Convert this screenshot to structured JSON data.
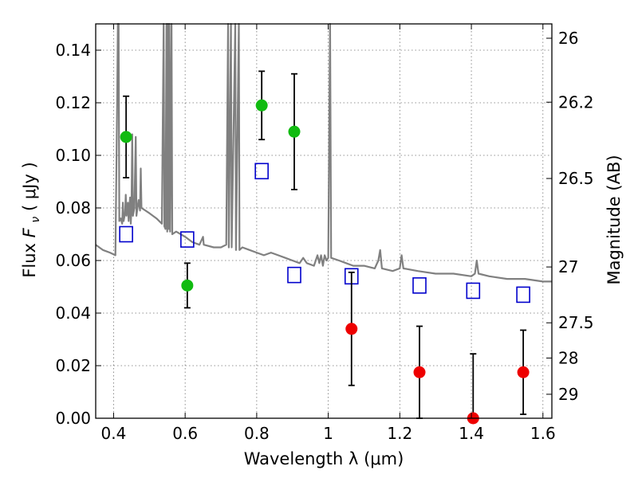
{
  "chart_data": {
    "type": "scatter",
    "xlabel": "Wavelength  λ (μm)",
    "ylabel_left": {
      "prefix": "Flux ",
      "symbol": "F",
      "subscript": "ν",
      "suffix": " ( μJy )"
    },
    "ylabel_right": "Magnitude (AB)",
    "xlim": [
      0.35,
      1.625
    ],
    "ylim": [
      0,
      0.15
    ],
    "x_ticks": [
      0.4,
      0.6,
      0.8,
      1.0,
      1.2,
      1.4,
      1.6
    ],
    "x_tick_labels": [
      "0.4",
      "0.6",
      "0.8",
      "1",
      "1.2",
      "1.4",
      "1.6"
    ],
    "y_ticks": [
      0.0,
      0.02,
      0.04,
      0.06,
      0.08,
      0.1,
      0.12,
      0.14
    ],
    "y_tick_labels": [
      "0.00",
      "0.02",
      "0.04",
      "0.06",
      "0.08",
      "0.10",
      "0.12",
      "0.14"
    ],
    "right_ticks": [
      {
        "mag": 26,
        "label": "26"
      },
      {
        "mag": 26.2,
        "label": "26.2"
      },
      {
        "mag": 26.5,
        "label": "26.5"
      },
      {
        "mag": 27,
        "label": "27"
      },
      {
        "mag": 27.5,
        "label": "27.5"
      },
      {
        "mag": 28,
        "label": "28"
      },
      {
        "mag": 29,
        "label": "29"
      }
    ],
    "grid": true,
    "colors": {
      "detected": "#11bb11",
      "upper": "#ee0000",
      "model": "#0000cc",
      "spectrum": "#808080",
      "errorbar": "#000000"
    },
    "detected_points": [
      {
        "x": 0.435,
        "y": 0.107,
        "err": 0.0155
      },
      {
        "x": 0.606,
        "y": 0.0505,
        "err": 0.0085
      },
      {
        "x": 0.814,
        "y": 0.119,
        "err": 0.013
      },
      {
        "x": 0.905,
        "y": 0.109,
        "err": 0.022
      }
    ],
    "nondetected_points": [
      {
        "x": 1.065,
        "y": 0.034,
        "err": 0.0215
      },
      {
        "x": 1.255,
        "y": 0.0175,
        "err": 0.0175
      },
      {
        "x": 1.405,
        "y": 0.0,
        "err": 0.0245
      },
      {
        "x": 1.545,
        "y": 0.0175,
        "err": 0.016
      }
    ],
    "model_points": [
      {
        "x": 0.435,
        "y": 0.07
      },
      {
        "x": 0.606,
        "y": 0.068
      },
      {
        "x": 0.814,
        "y": 0.094
      },
      {
        "x": 0.905,
        "y": 0.0545
      },
      {
        "x": 1.065,
        "y": 0.054
      },
      {
        "x": 1.255,
        "y": 0.0505
      },
      {
        "x": 1.405,
        "y": 0.0485
      },
      {
        "x": 1.545,
        "y": 0.047
      }
    ],
    "spectrum": [
      [
        0.35,
        0.066
      ],
      [
        0.37,
        0.064
      ],
      [
        0.39,
        0.063
      ],
      [
        0.405,
        0.062
      ],
      [
        0.41,
        0.12
      ],
      [
        0.412,
        0.15
      ],
      [
        0.414,
        0.15
      ],
      [
        0.416,
        0.075
      ],
      [
        0.42,
        0.076
      ],
      [
        0.424,
        0.074
      ],
      [
        0.426,
        0.082
      ],
      [
        0.428,
        0.075
      ],
      [
        0.432,
        0.078
      ],
      [
        0.434,
        0.085
      ],
      [
        0.436,
        0.077
      ],
      [
        0.44,
        0.082
      ],
      [
        0.442,
        0.075
      ],
      [
        0.446,
        0.084
      ],
      [
        0.448,
        0.074
      ],
      [
        0.45,
        0.08
      ],
      [
        0.452,
        0.108
      ],
      [
        0.454,
        0.077
      ],
      [
        0.458,
        0.08
      ],
      [
        0.462,
        0.107
      ],
      [
        0.464,
        0.077
      ],
      [
        0.47,
        0.083
      ],
      [
        0.474,
        0.079
      ],
      [
        0.476,
        0.095
      ],
      [
        0.478,
        0.08
      ],
      [
        0.5,
        0.078
      ],
      [
        0.52,
        0.076
      ],
      [
        0.535,
        0.074
      ],
      [
        0.54,
        0.15
      ],
      [
        0.542,
        0.073
      ],
      [
        0.545,
        0.072
      ],
      [
        0.548,
        0.15
      ],
      [
        0.55,
        0.071
      ],
      [
        0.552,
        0.15
      ],
      [
        0.554,
        0.072
      ],
      [
        0.556,
        0.15
      ],
      [
        0.558,
        0.071
      ],
      [
        0.562,
        0.15
      ],
      [
        0.564,
        0.07
      ],
      [
        0.575,
        0.071
      ],
      [
        0.6,
        0.069
      ],
      [
        0.62,
        0.067
      ],
      [
        0.64,
        0.066
      ],
      [
        0.65,
        0.069
      ],
      [
        0.652,
        0.066
      ],
      [
        0.68,
        0.065
      ],
      [
        0.7,
        0.065
      ],
      [
        0.715,
        0.066
      ],
      [
        0.72,
        0.15
      ],
      [
        0.722,
        0.065
      ],
      [
        0.728,
        0.15
      ],
      [
        0.73,
        0.065
      ],
      [
        0.74,
        0.15
      ],
      [
        0.742,
        0.064
      ],
      [
        0.75,
        0.15
      ],
      [
        0.752,
        0.064
      ],
      [
        0.76,
        0.065
      ],
      [
        0.78,
        0.064
      ],
      [
        0.8,
        0.063
      ],
      [
        0.82,
        0.062
      ],
      [
        0.84,
        0.063
      ],
      [
        0.86,
        0.062
      ],
      [
        0.88,
        0.061
      ],
      [
        0.9,
        0.06
      ],
      [
        0.92,
        0.059
      ],
      [
        0.93,
        0.061
      ],
      [
        0.94,
        0.059
      ],
      [
        0.96,
        0.058
      ],
      [
        0.97,
        0.062
      ],
      [
        0.975,
        0.059
      ],
      [
        0.98,
        0.062
      ],
      [
        0.985,
        0.058
      ],
      [
        0.99,
        0.062
      ],
      [
        0.995,
        0.06
      ],
      [
        1.0,
        0.061
      ],
      [
        1.005,
        0.15
      ],
      [
        1.008,
        0.061
      ],
      [
        1.03,
        0.06
      ],
      [
        1.05,
        0.059
      ],
      [
        1.07,
        0.058
      ],
      [
        1.1,
        0.058
      ],
      [
        1.13,
        0.057
      ],
      [
        1.14,
        0.06
      ],
      [
        1.145,
        0.064
      ],
      [
        1.15,
        0.057
      ],
      [
        1.18,
        0.056
      ],
      [
        1.2,
        0.057
      ],
      [
        1.205,
        0.062
      ],
      [
        1.21,
        0.057
      ],
      [
        1.25,
        0.056
      ],
      [
        1.3,
        0.055
      ],
      [
        1.35,
        0.055
      ],
      [
        1.4,
        0.054
      ],
      [
        1.41,
        0.055
      ],
      [
        1.415,
        0.06
      ],
      [
        1.42,
        0.055
      ],
      [
        1.45,
        0.054
      ],
      [
        1.5,
        0.053
      ],
      [
        1.55,
        0.053
      ],
      [
        1.6,
        0.052
      ],
      [
        1.625,
        0.052
      ]
    ]
  }
}
